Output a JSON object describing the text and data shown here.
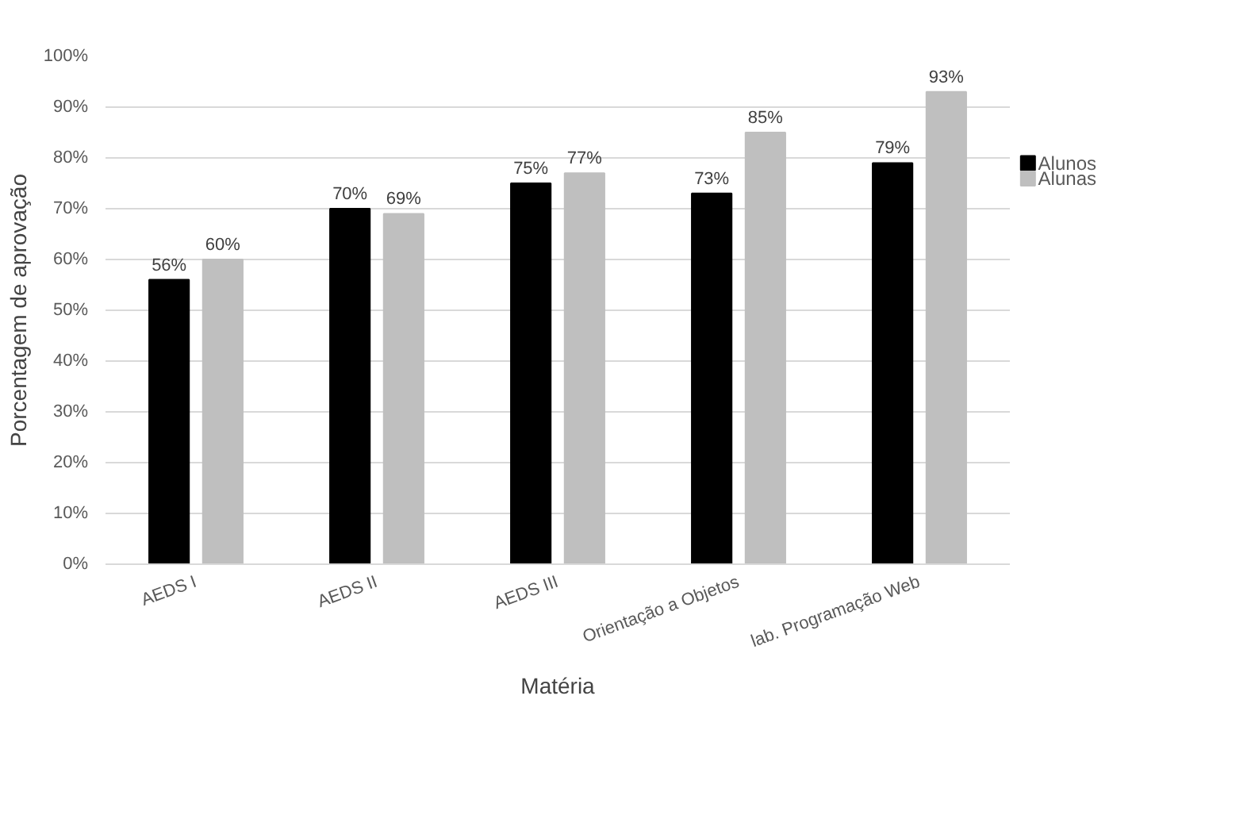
{
  "chart_data": {
    "type": "bar",
    "xlabel": "Matéria",
    "ylabel": "Porcentagem de aprovação",
    "categories": [
      "AEDS I",
      "AEDS II",
      "AEDS III",
      "Orientação a Objetos",
      "lab. Programação Web"
    ],
    "series": [
      {
        "name": "Alunos",
        "color": "#000000",
        "values": [
          56,
          70,
          75,
          73,
          79
        ],
        "value_labels": [
          "56%",
          "70%",
          "75%",
          "73%",
          "79%"
        ]
      },
      {
        "name": "Alunas",
        "color": "#bfbfbf",
        "values": [
          60,
          69,
          77,
          85,
          93
        ],
        "value_labels": [
          "60%",
          "69%",
          "77%",
          "85%",
          "93%"
        ]
      }
    ],
    "ylim": [
      0,
      100
    ],
    "yticks": [
      {
        "value": 0,
        "label": "0%"
      },
      {
        "value": 10,
        "label": "10%"
      },
      {
        "value": 20,
        "label": "20%"
      },
      {
        "value": 30,
        "label": "30%"
      },
      {
        "value": 40,
        "label": "40%"
      },
      {
        "value": 50,
        "label": "50%"
      },
      {
        "value": 60,
        "label": "60%"
      },
      {
        "value": 70,
        "label": "70%"
      },
      {
        "value": 80,
        "label": "80%"
      },
      {
        "value": 90,
        "label": "90%"
      },
      {
        "value": 100,
        "label": "100%"
      }
    ],
    "grid": "y",
    "legend": "right"
  }
}
